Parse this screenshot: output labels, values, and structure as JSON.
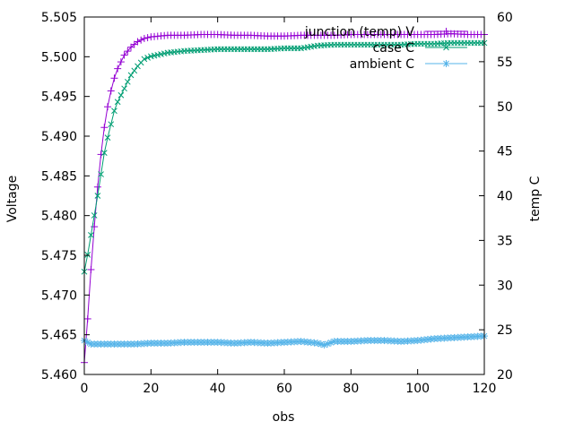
{
  "chart_data": {
    "type": "line",
    "title": "",
    "xlabel": "obs",
    "ylabel": "Voltage",
    "y2label": "temp C",
    "xlim": [
      0,
      120
    ],
    "ylim": [
      5.46,
      5.505
    ],
    "y2lim": [
      20,
      60
    ],
    "x_ticks": [
      0,
      20,
      40,
      60,
      80,
      100,
      120
    ],
    "y_ticks": [
      5.46,
      5.465,
      5.47,
      5.475,
      5.48,
      5.485,
      5.49,
      5.495,
      5.5,
      5.505
    ],
    "y_tick_labels": [
      "5.460",
      "5.465",
      "5.470",
      "5.475",
      "5.480",
      "5.485",
      "5.490",
      "5.495",
      "5.500",
      "5.505"
    ],
    "y2_ticks": [
      20,
      25,
      30,
      35,
      40,
      45,
      50,
      55,
      60
    ],
    "grid": false,
    "legend": "top-right",
    "series": [
      {
        "name": "junction (temp) V",
        "axis": "y",
        "color": "#9400d3",
        "marker": "plus",
        "x": [
          0,
          1,
          2,
          3,
          4,
          5,
          6,
          7,
          8,
          9,
          10,
          12,
          14,
          16,
          18,
          20,
          25,
          30,
          35,
          40,
          45,
          50,
          55,
          60,
          65,
          70,
          75,
          80,
          85,
          90,
          95,
          100,
          105,
          110,
          115,
          120
        ],
        "y": [
          5.4615,
          5.467,
          5.4732,
          5.4786,
          5.4836,
          5.4877,
          5.4911,
          5.4937,
          5.4957,
          5.4973,
          5.4985,
          5.5002,
          5.5012,
          5.5019,
          5.5023,
          5.5025,
          5.5027,
          5.5027,
          5.5028,
          5.5028,
          5.5027,
          5.5027,
          5.5026,
          5.5026,
          5.5027,
          5.5027,
          5.5027,
          5.5028,
          5.5028,
          5.5028,
          5.5028,
          5.5028,
          5.5028,
          5.5029,
          5.5028,
          5.5028
        ]
      },
      {
        "name": "case C",
        "axis": "y2",
        "color": "#009e73",
        "marker": "x",
        "x": [
          0,
          1,
          2,
          3,
          4,
          5,
          6,
          7,
          8,
          9,
          10,
          12,
          14,
          16,
          18,
          20,
          25,
          30,
          35,
          40,
          45,
          50,
          55,
          60,
          65,
          70,
          75,
          80,
          85,
          90,
          95,
          100,
          105,
          110,
          115,
          120
        ],
        "y": [
          31.5,
          33.4,
          35.6,
          37.8,
          40.0,
          42.4,
          44.8,
          46.5,
          48.0,
          49.5,
          50.5,
          52.0,
          53.5,
          54.5,
          55.3,
          55.6,
          56.0,
          56.2,
          56.3,
          56.4,
          56.4,
          56.4,
          56.4,
          56.5,
          56.5,
          56.8,
          56.9,
          56.9,
          56.9,
          56.9,
          56.9,
          57.0,
          57.0,
          57.1,
          57.1,
          57.1
        ]
      },
      {
        "name": "ambient C",
        "axis": "y2",
        "color": "#56b4e9",
        "marker": "star",
        "x": [
          0,
          2,
          5,
          10,
          15,
          20,
          25,
          30,
          35,
          40,
          45,
          50,
          55,
          60,
          65,
          70,
          72,
          75,
          80,
          85,
          90,
          95,
          100,
          105,
          110,
          115,
          120
        ],
        "y": [
          23.8,
          23.4,
          23.4,
          23.4,
          23.4,
          23.5,
          23.5,
          23.6,
          23.6,
          23.6,
          23.5,
          23.6,
          23.5,
          23.6,
          23.7,
          23.5,
          23.3,
          23.7,
          23.7,
          23.8,
          23.8,
          23.7,
          23.8,
          24.0,
          24.1,
          24.2,
          24.3
        ]
      }
    ]
  }
}
